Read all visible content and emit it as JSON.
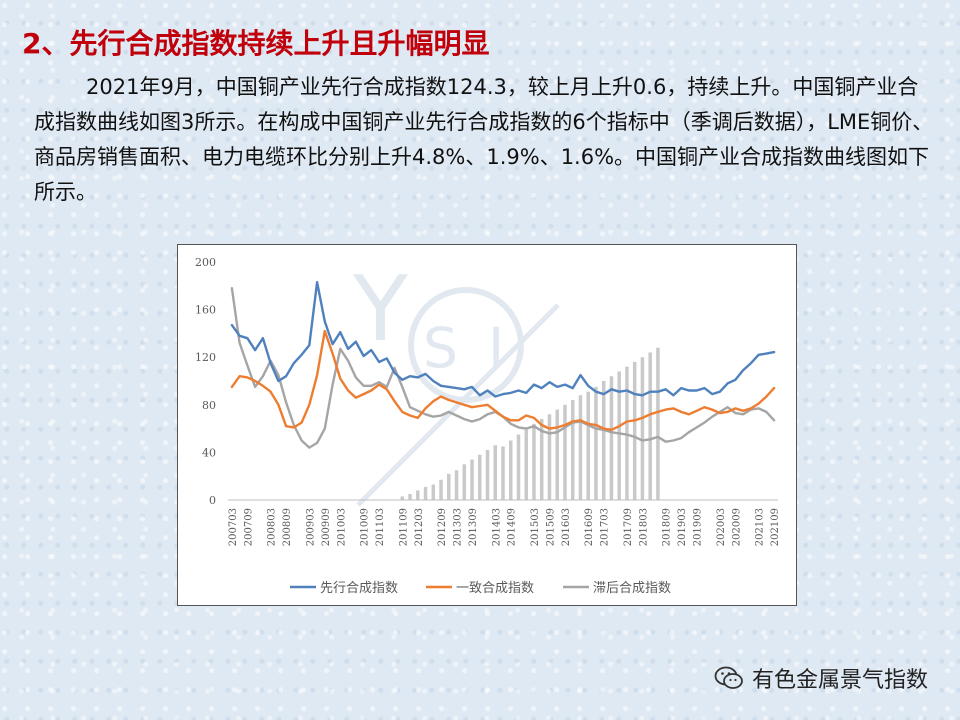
{
  "heading": "2、先行合成指数持续上升且升幅明显",
  "paragraph": "2021年9月，中国铜产业先行合成指数124.3，较上月上升0.6，持续上升。中国铜产业合成指数曲线如图3所示。在构成中国铜产业先行合成指数的6个指标中（季调后数据），LME铜价、商品房销售面积、电力电缆环比分别上升4.8%、1.9%、1.6%。中国铜产业合成指数曲线图如下所示。",
  "watermark": {
    "text": "有色金属景气指数",
    "icon": "wechat-icon"
  },
  "colors": {
    "heading": "#c0000a",
    "lead": "#4f81bd",
    "coincident": "#ed7d31",
    "lagging": "#a5a5a5",
    "bars": "#c9c9c9"
  },
  "chart_data": {
    "type": "line",
    "title": "",
    "xlabel": "",
    "ylabel": "",
    "ylim": [
      0,
      200
    ],
    "yticks": [
      "0",
      "40",
      "80",
      "120",
      "160",
      "200"
    ],
    "grid": false,
    "legend": "bottom",
    "x_tick_labels": [
      "200703",
      "200709",
      "200803",
      "200809",
      "200903",
      "200909",
      "201003",
      "201009",
      "201103",
      "201109",
      "201203",
      "201209",
      "201303",
      "201309",
      "201403",
      "201409",
      "201503",
      "201509",
      "201603",
      "201609",
      "201703",
      "201709",
      "201803",
      "201809",
      "201903",
      "201909",
      "202003",
      "202009",
      "202103",
      "202109"
    ],
    "series": [
      {
        "name": "先行合成指数",
        "color": "#4f81bd",
        "values": [
          147,
          138,
          136,
          126,
          136,
          115,
          100,
          104,
          115,
          122,
          130,
          183,
          150,
          131,
          141,
          127,
          133,
          121,
          126,
          116,
          119,
          107,
          101,
          104,
          103,
          106,
          100,
          96,
          95,
          94,
          93,
          95,
          88,
          92,
          87,
          89,
          90,
          92,
          90,
          97,
          94,
          99,
          95,
          97,
          94,
          105,
          96,
          91,
          89,
          93,
          91,
          92,
          89,
          88,
          91,
          91,
          93,
          88,
          94,
          92,
          92,
          94,
          89,
          91,
          98,
          101,
          109,
          115,
          122,
          123,
          124.3
        ]
      },
      {
        "name": "一致合成指数",
        "color": "#ed7d31",
        "values": [
          95,
          104,
          103,
          100,
          96,
          91,
          80,
          62,
          61,
          65,
          80,
          105,
          142,
          123,
          102,
          92,
          86,
          89,
          92,
          97,
          93,
          83,
          74,
          71,
          69,
          77,
          83,
          87,
          84,
          82,
          80,
          78,
          79,
          80,
          75,
          70,
          67,
          67,
          71,
          69,
          63,
          60,
          61,
          63,
          66,
          67,
          64,
          63,
          60,
          59,
          62,
          66,
          67,
          69,
          72,
          74,
          76,
          77,
          74,
          72,
          75,
          78,
          76,
          73,
          74,
          77,
          75,
          77,
          81,
          87,
          94
        ]
      },
      {
        "name": "滞后合成指数",
        "color": "#a5a5a5",
        "values": [
          178,
          132,
          113,
          95,
          104,
          117,
          105,
          82,
          63,
          50,
          44,
          48,
          60,
          97,
          127,
          117,
          103,
          96,
          96,
          99,
          95,
          111,
          95,
          78,
          75,
          72,
          70,
          71,
          74,
          71,
          68,
          66,
          68,
          72,
          74,
          70,
          64,
          61,
          60,
          62,
          58,
          56,
          57,
          61,
          65,
          66,
          63,
          60,
          59,
          57,
          56,
          55,
          53,
          50,
          51,
          53,
          49,
          50,
          52,
          57,
          61,
          65,
          70,
          74,
          78,
          73,
          72,
          76,
          77,
          74,
          67
        ]
      }
    ],
    "bars": {
      "name": "",
      "color": "#c9c9c9",
      "values": [
        0,
        0,
        0,
        0,
        0,
        0,
        0,
        0,
        0,
        0,
        0,
        0,
        0,
        0,
        0,
        0,
        0,
        0,
        0,
        0,
        0,
        0,
        3,
        5,
        8,
        11,
        13,
        17,
        22,
        25,
        30,
        34,
        38,
        42,
        46,
        45,
        50,
        55,
        59,
        64,
        68,
        72,
        76,
        80,
        84,
        88,
        91,
        95,
        100,
        104,
        108,
        112,
        116,
        120,
        124,
        128,
        0,
        0,
        0,
        0,
        0,
        0,
        0,
        0,
        0,
        0,
        0,
        0,
        0,
        0,
        0
      ]
    }
  }
}
